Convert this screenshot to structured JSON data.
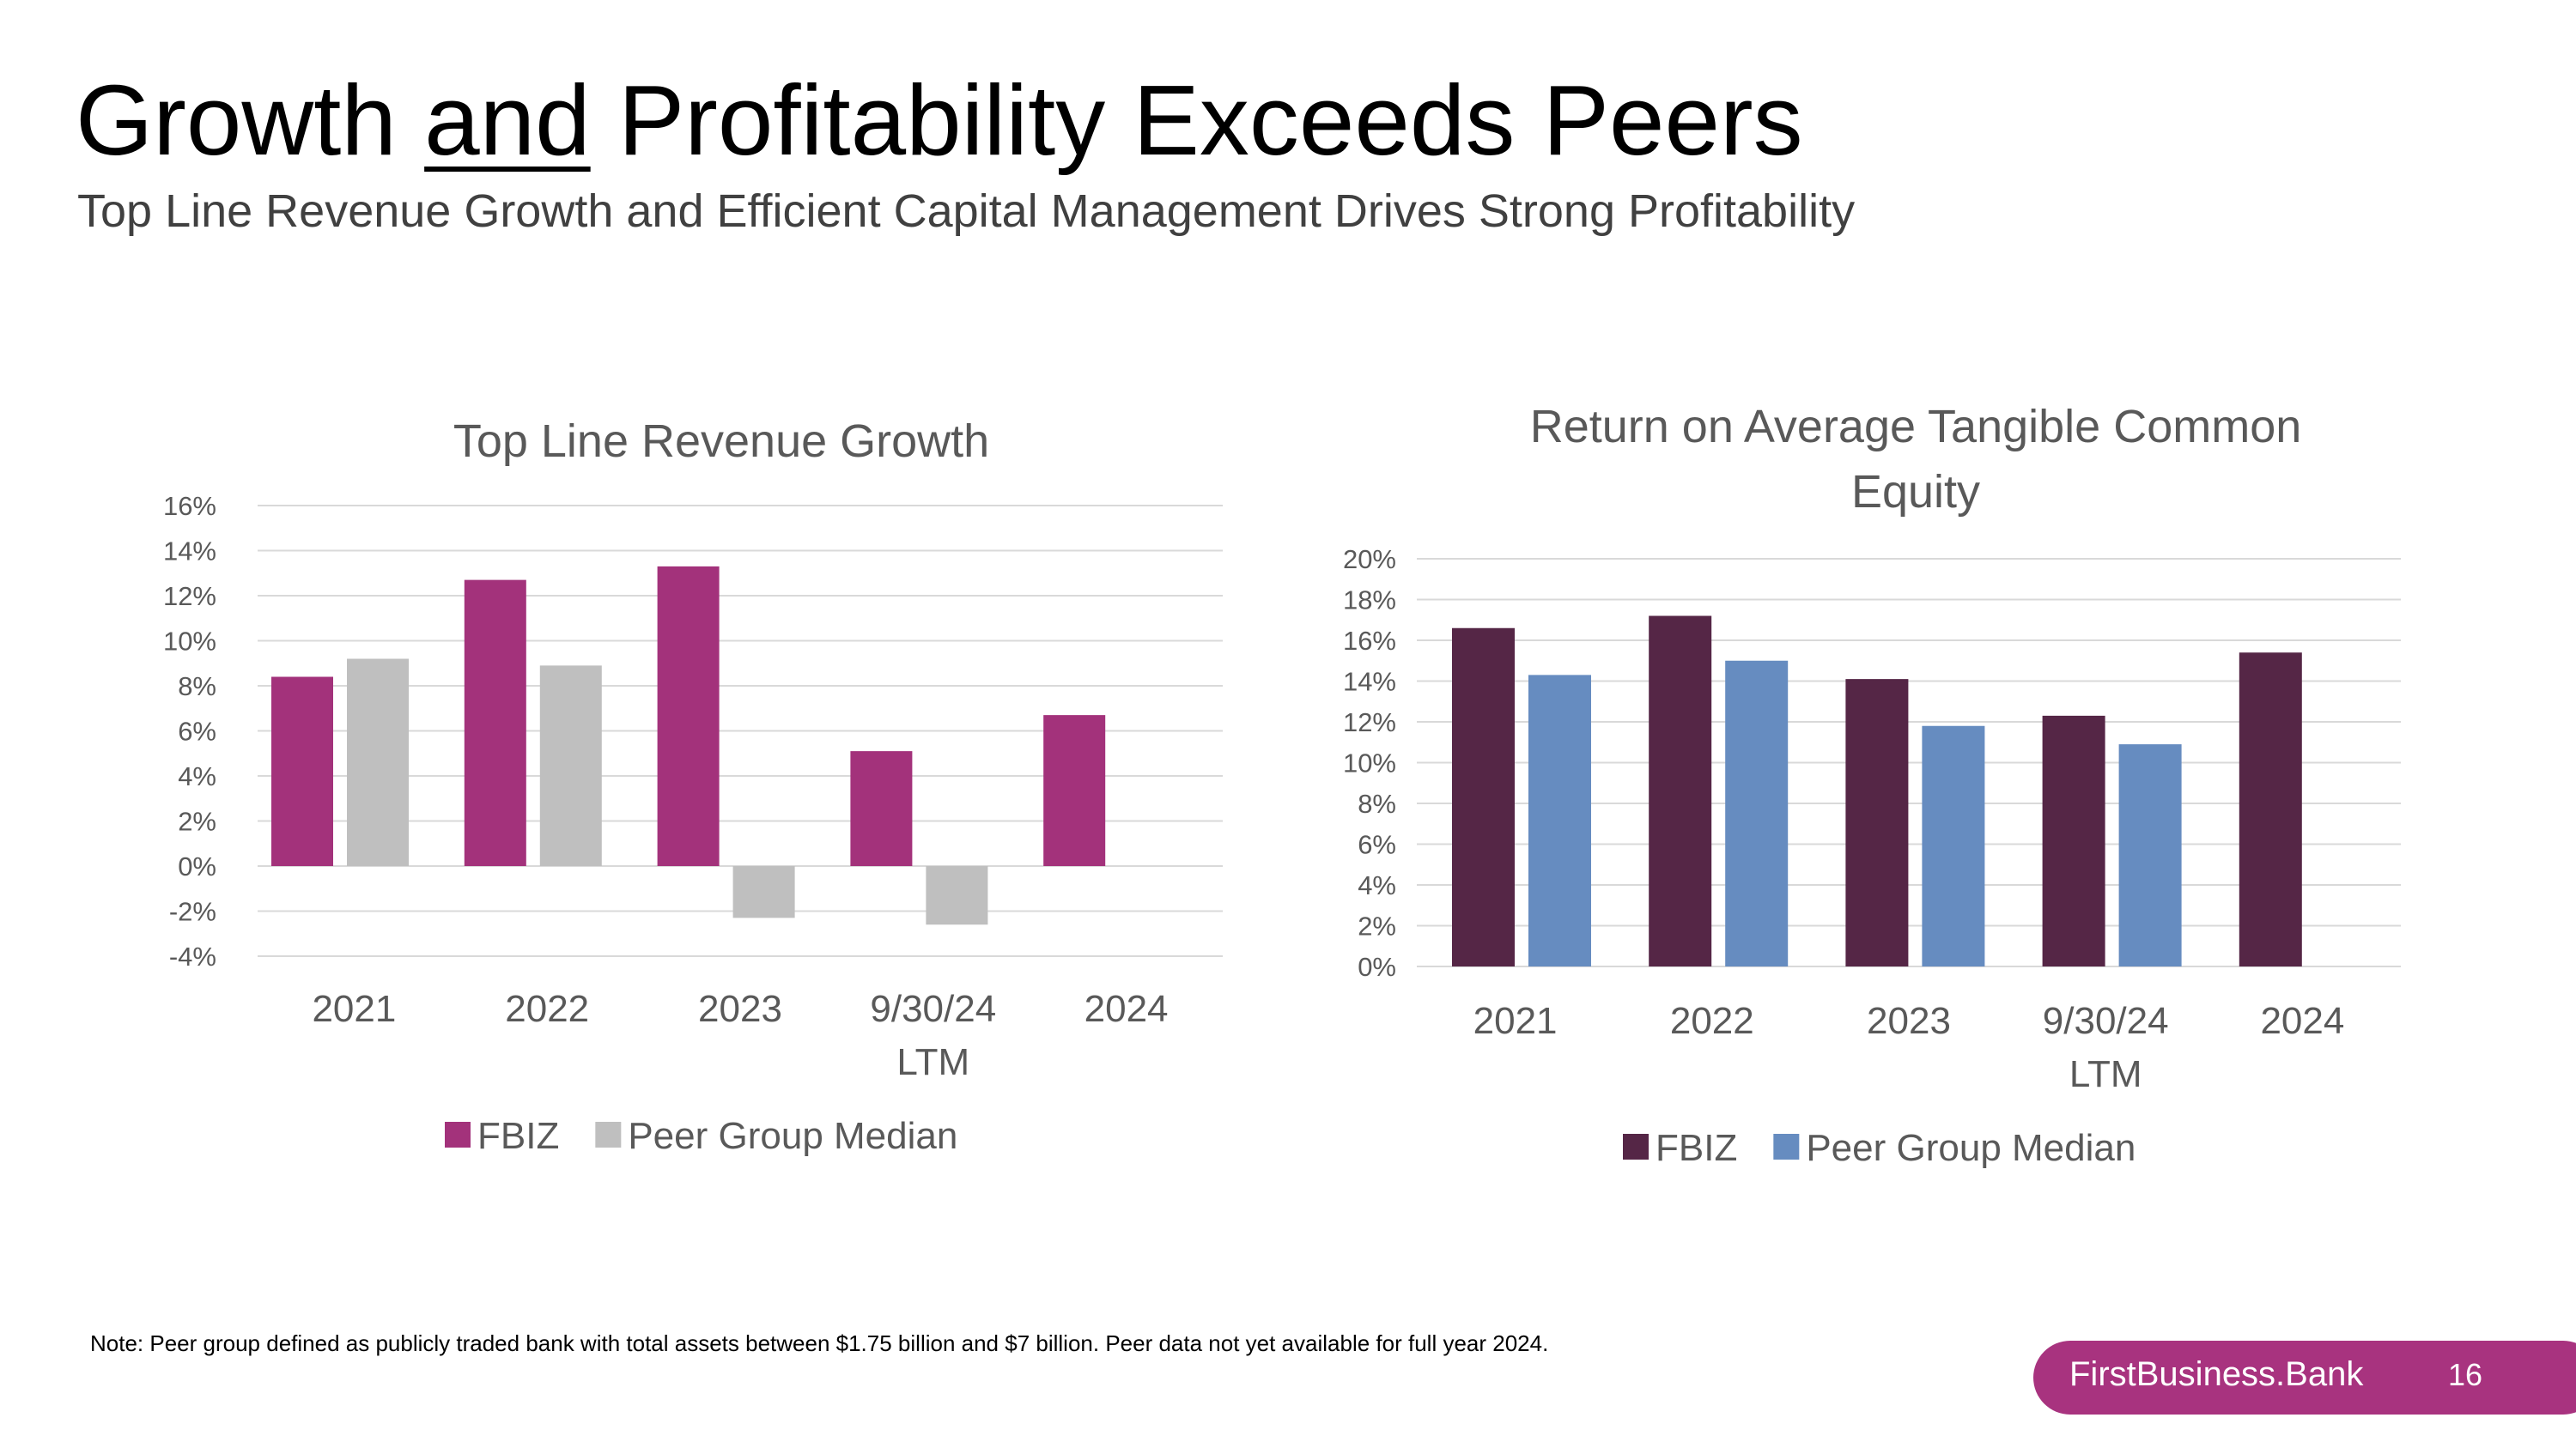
{
  "header": {
    "title_before": "Growth",
    "title_emph": "and",
    "title_after": "Profitability Exceeds Peers",
    "subtitle": "Top Line Revenue Growth and Efficient Capital Management Drives Strong Profitability"
  },
  "footer": {
    "note": "Note: Peer group defined as publicly traded bank with total assets between $1.75 billion and $7 billion. Peer data not yet available for full year 2024.",
    "brand": "FirstBusiness.Bank",
    "page_number": "16"
  },
  "colors": {
    "chart1_fbiz": "#a3327b",
    "chart1_peer": "#bfbfbf",
    "chart2_fbiz": "#552646",
    "chart2_peer": "#668cc0",
    "brand_bar": "#a8337f"
  },
  "chart_data": [
    {
      "type": "bar",
      "title": "Top Line Revenue Growth",
      "categories": [
        "2021",
        "2022",
        "2023",
        "9/30/24 LTM",
        "2024"
      ],
      "series": [
        {
          "name": "FBIZ",
          "values": [
            8.4,
            12.7,
            13.3,
            5.1,
            6.7
          ]
        },
        {
          "name": "Peer Group Median",
          "values": [
            9.2,
            8.9,
            -2.3,
            -2.6,
            null
          ]
        }
      ],
      "ylim": [
        -4,
        16
      ],
      "yticks": [
        -4,
        -2,
        0,
        2,
        4,
        6,
        8,
        10,
        12,
        14,
        16
      ],
      "ytick_labels": [
        "-4%",
        "-2%",
        "0%",
        "2%",
        "4%",
        "6%",
        "8%",
        "10%",
        "12%",
        "14%",
        "16%"
      ],
      "xlabel": "",
      "ylabel": "",
      "legend": "bottom",
      "grid": true
    },
    {
      "type": "bar",
      "title": "Return on Average Tangible Common Equity",
      "categories": [
        "2021",
        "2022",
        "2023",
        "9/30/24 LTM",
        "2024"
      ],
      "series": [
        {
          "name": "FBIZ",
          "values": [
            16.6,
            17.2,
            14.1,
            12.3,
            15.4
          ]
        },
        {
          "name": "Peer Group Median",
          "values": [
            14.3,
            15.0,
            11.8,
            10.9,
            null
          ]
        }
      ],
      "ylim": [
        0,
        20
      ],
      "yticks": [
        0,
        2,
        4,
        6,
        8,
        10,
        12,
        14,
        16,
        18,
        20
      ],
      "ytick_labels": [
        "0%",
        "2%",
        "4%",
        "6%",
        "8%",
        "10%",
        "12%",
        "14%",
        "16%",
        "18%",
        "20%"
      ],
      "xlabel": "",
      "ylabel": "",
      "legend": "bottom",
      "grid": true
    }
  ]
}
